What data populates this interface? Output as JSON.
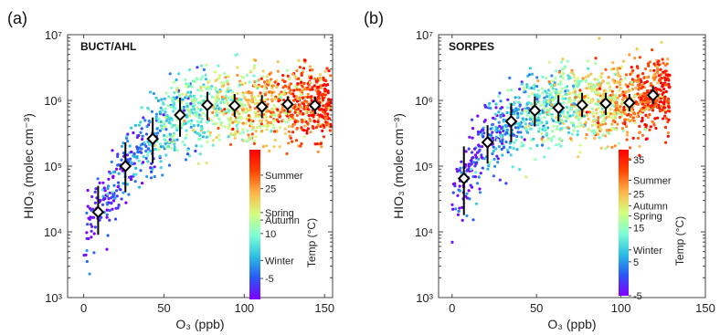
{
  "chart_data": [
    {
      "type": "scatter",
      "panel_label": "(a)",
      "site": "BUCT/AHL",
      "xlabel": "O₃ (ppb)",
      "ylabel": "HIO₃ (molec cm⁻³)",
      "xlim": [
        -10,
        155
      ],
      "ylim_log10": [
        3,
        7
      ],
      "y_scale": "log",
      "x_ticks": [
        "0",
        "50",
        "100",
        "150"
      ],
      "x_tick_values": [
        0,
        50,
        100,
        150
      ],
      "y_ticks": [
        "10³",
        "10⁴",
        "10⁵",
        "10⁶",
        "10⁷"
      ],
      "y_tick_values_log10": [
        3,
        4,
        5,
        6,
        7
      ],
      "colorbar": {
        "title": "Temp (°C)",
        "range": [
          -12,
          38
        ],
        "colors": [
          "#7f00ff",
          "#2a56f5",
          "#2bc0e4",
          "#7fffd4",
          "#d4ff7f",
          "#ffb347",
          "#ff4500",
          "#ff0000"
        ],
        "labels": [
          {
            "text": "Summer",
            "value": 29.5
          },
          {
            "text": "25",
            "value": 25
          },
          {
            "text": "Spring",
            "value": 17
          },
          {
            "text": "Autumn",
            "value": 14.5
          },
          {
            "text": "10",
            "value": 10
          },
          {
            "text": "Winter",
            "value": 1
          },
          {
            "text": "-5",
            "value": -5
          }
        ]
      },
      "binned_median": {
        "x": [
          9,
          26,
          43,
          60,
          77,
          94,
          111,
          127,
          144
        ],
        "y": [
          20000,
          100000,
          260000,
          600000,
          850000,
          830000,
          800000,
          870000,
          840000
        ],
        "y_low": [
          9000,
          40000,
          110000,
          280000,
          500000,
          560000,
          540000,
          650000,
          620000
        ],
        "y_high": [
          50000,
          230000,
          550000,
          1100000,
          1350000,
          1250000,
          1200000,
          1150000,
          1150000
        ]
      }
    },
    {
      "type": "scatter",
      "panel_label": "(b)",
      "site": "SORPES",
      "xlabel": "O₃ (ppb)",
      "ylabel": "HIO₃ (molec cm⁻³)",
      "xlim": [
        -8,
        150
      ],
      "ylim_log10": [
        3,
        7
      ],
      "y_scale": "log",
      "x_ticks": [
        "0",
        "50",
        "100",
        "150"
      ],
      "x_tick_values": [
        0,
        50,
        100,
        150
      ],
      "y_ticks": [
        "10³",
        "10⁴",
        "10⁵",
        "10⁶",
        "10⁷"
      ],
      "y_tick_values_log10": [
        3,
        4,
        5,
        6,
        7
      ],
      "colorbar": {
        "title": "Temp (°C)",
        "range": [
          -5,
          38
        ],
        "colors": [
          "#7f00ff",
          "#2a56f5",
          "#2bc0e4",
          "#7fffd4",
          "#d4ff7f",
          "#ffb347",
          "#ff4500",
          "#ff0000"
        ],
        "labels": [
          {
            "text": "35",
            "value": 35
          },
          {
            "text": "Summer",
            "value": 29
          },
          {
            "text": "25",
            "value": 25
          },
          {
            "text": "Autumn",
            "value": 21.5
          },
          {
            "text": "Spring",
            "value": 18.5
          },
          {
            "text": "15",
            "value": 15
          },
          {
            "text": "Winter",
            "value": 8.5
          },
          {
            "text": "5",
            "value": 5
          },
          {
            "text": "-5",
            "value": -5
          }
        ]
      },
      "binned_median": {
        "x": [
          7,
          21,
          35,
          49,
          63,
          77,
          91,
          105,
          119
        ],
        "y": [
          65000,
          230000,
          480000,
          700000,
          770000,
          850000,
          900000,
          920000,
          1200000
        ],
        "y_low": [
          18000,
          110000,
          230000,
          400000,
          480000,
          560000,
          600000,
          680000,
          880000
        ],
        "y_high": [
          200000,
          420000,
          900000,
          1150000,
          1200000,
          1300000,
          1300000,
          1250000,
          1650000
        ]
      }
    }
  ]
}
